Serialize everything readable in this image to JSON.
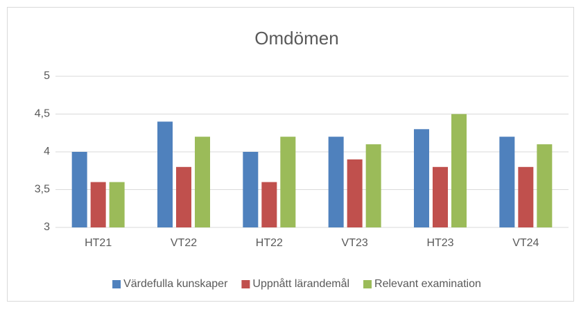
{
  "chart_data": {
    "type": "bar",
    "title": "Omdömen",
    "categories": [
      "HT21",
      "VT22",
      "HT22",
      "VT23",
      "HT23",
      "VT24"
    ],
    "series": [
      {
        "name": "Värdefulla kunskaper",
        "color": "#4f81bd",
        "values": [
          4.0,
          4.4,
          4.0,
          4.2,
          4.3,
          4.2
        ]
      },
      {
        "name": "Uppnått lärandemål",
        "color": "#c0504d",
        "values": [
          3.6,
          3.8,
          3.6,
          3.9,
          3.8,
          3.8
        ]
      },
      {
        "name": "Relevant examination",
        "color": "#9bbb59",
        "values": [
          3.6,
          4.2,
          4.2,
          4.1,
          4.5,
          4.1
        ]
      }
    ],
    "ylim": [
      3,
      5
    ],
    "yticks": [
      3,
      {
        "value": 3.5,
        "label": "3,5"
      },
      4,
      {
        "value": 4.5,
        "label": "4,5"
      },
      5
    ],
    "grid": true,
    "legend": "bottom"
  }
}
